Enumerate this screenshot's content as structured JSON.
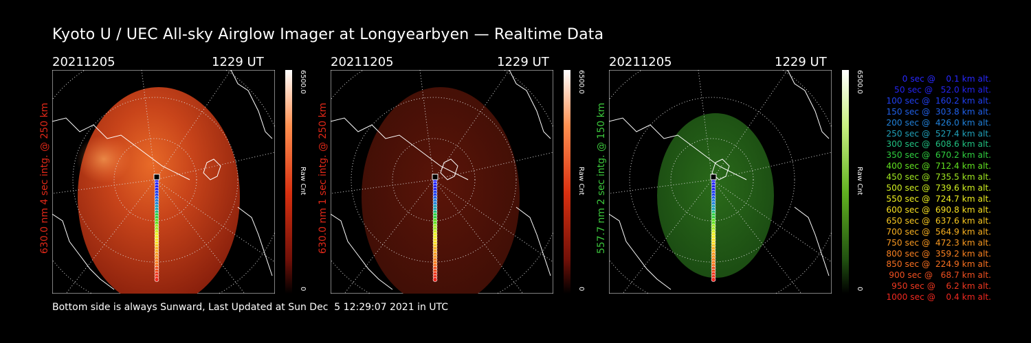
{
  "title": "Kyoto U / UEC All-sky Airglow Imager at Longyearbyen — Realtime Data",
  "footer": "Bottom side is always Sunward, Last Updated at Sun Dec  5 12:29:07 2021 in UTC",
  "colors": {
    "red_channel": "#e0301c",
    "green_channel": "#3cd23c",
    "background": "#000000"
  },
  "panels": [
    {
      "date": "20211205",
      "time": "1229 UT",
      "side_label": "630.0 nm 4 sec intg. @ 250 km",
      "label_color": "#e02818",
      "colorbar_max": "6500.0",
      "colorbar_min": "0",
      "colorbar_unit": "Raw Cnt",
      "image_tone": "bright red airglow"
    },
    {
      "date": "20211205",
      "time": "1229 UT",
      "side_label": "630.0 nm 1 sec intg. @ 250 km",
      "label_color": "#e02818",
      "colorbar_max": "6500.0",
      "colorbar_min": "0",
      "colorbar_unit": "Raw Cnt",
      "image_tone": "dim red airglow"
    },
    {
      "date": "20211205",
      "time": "1229 UT",
      "side_label": "557.7 nm 2 sec intg. @ 150 km",
      "label_color": "#3cc83c",
      "colorbar_max": "6500.0",
      "colorbar_min": "0",
      "colorbar_unit": "Raw Cnt",
      "image_tone": "green airglow"
    }
  ],
  "legend": [
    {
      "text": "   0 sec @    0.1 km alt.",
      "color": "#2828ff"
    },
    {
      "text": "  50 sec @   52.0 km alt.",
      "color": "#2424f0"
    },
    {
      "text": " 100 sec @  160.2 km alt.",
      "color": "#2040f0"
    },
    {
      "text": " 150 sec @  303.8 km alt.",
      "color": "#2060e8"
    },
    {
      "text": " 200 sec @  426.0 km alt.",
      "color": "#2080d8"
    },
    {
      "text": " 250 sec @  527.4 km alt.",
      "color": "#20a0b8"
    },
    {
      "text": " 300 sec @  608.6 km alt.",
      "color": "#20c080"
    },
    {
      "text": " 350 sec @  670.2 km alt.",
      "color": "#30d040"
    },
    {
      "text": " 400 sec @  712.4 km alt.",
      "color": "#60e020"
    },
    {
      "text": " 450 sec @  735.5 km alt.",
      "color": "#a0e820"
    },
    {
      "text": " 500 sec @  739.6 km alt.",
      "color": "#d0f020"
    },
    {
      "text": " 550 sec @  724.7 km alt.",
      "color": "#f0f020"
    },
    {
      "text": " 600 sec @  690.8 km alt.",
      "color": "#f8e020"
    },
    {
      "text": " 650 sec @  637.6 km alt.",
      "color": "#f8c820"
    },
    {
      "text": " 700 sec @  564.9 km alt.",
      "color": "#f8b020"
    },
    {
      "text": " 750 sec @  472.3 km alt.",
      "color": "#f89820"
    },
    {
      "text": " 800 sec @  359.2 km alt.",
      "color": "#f88020"
    },
    {
      "text": " 850 sec @  224.9 km alt.",
      "color": "#f87020"
    },
    {
      "text": " 900 sec @   68.7 km alt.",
      "color": "#f05020"
    },
    {
      "text": " 950 sec @    6.2 km alt.",
      "color": "#f03820"
    },
    {
      "text": "1000 sec @    0.4 km alt.",
      "color": "#f02820"
    }
  ]
}
